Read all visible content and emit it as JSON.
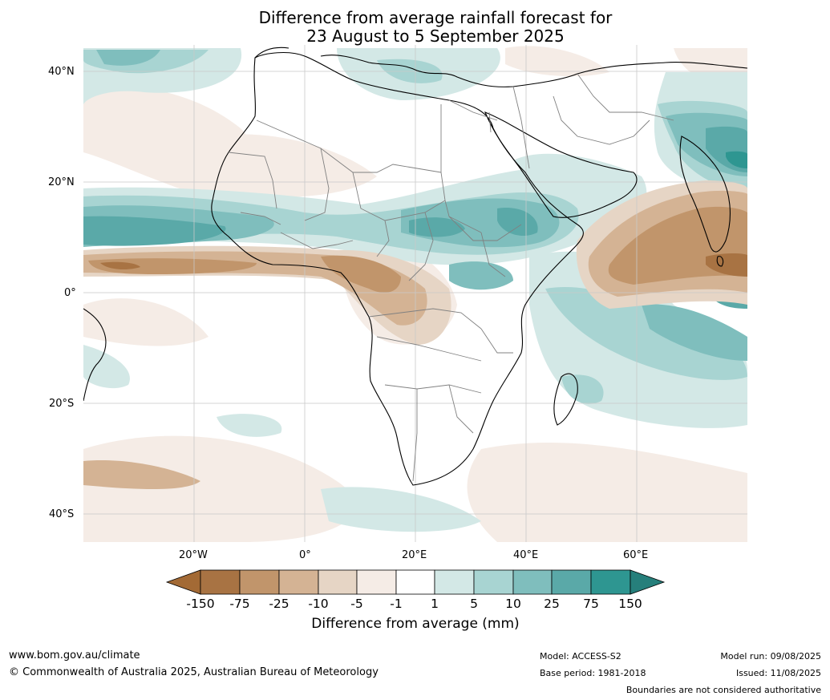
{
  "title_line1": "Difference from average rainfall forecast for",
  "title_line2": "23 August to 5 September 2025",
  "lat_labels": [
    "40°N",
    "20°N",
    "0°",
    "20°S",
    "40°S"
  ],
  "lon_labels": [
    "20°W",
    "0°",
    "20°E",
    "40°E",
    "60°E"
  ],
  "colorbar": {
    "ticks": [
      "-150",
      "-75",
      "-25",
      "-10",
      "-5",
      "-1",
      "1",
      "5",
      "10",
      "25",
      "75",
      "150"
    ],
    "colors": [
      "#a36a35",
      "#a87343",
      "#c1956b",
      "#d4b394",
      "#e6d5c5",
      "#f5ece6",
      "#ffffff",
      "#d3e8e6",
      "#a8d4d2",
      "#7fbebd",
      "#5aa9a8",
      "#2e9691",
      "#267f7b"
    ],
    "label": "Difference from average (mm)"
  },
  "footer": {
    "website": "www.bom.gov.au/climate",
    "copyright": "© Commonwealth of Australia 2025, Australian Bureau of Meteorology",
    "model": "Model: ACCESS-S2",
    "base_period": "Base period: 1981-2018",
    "model_run": "Model run: 09/08/2025",
    "issued": "Issued: 11/08/2025",
    "disclaimer": "Boundaries are not considered authoritative"
  }
}
